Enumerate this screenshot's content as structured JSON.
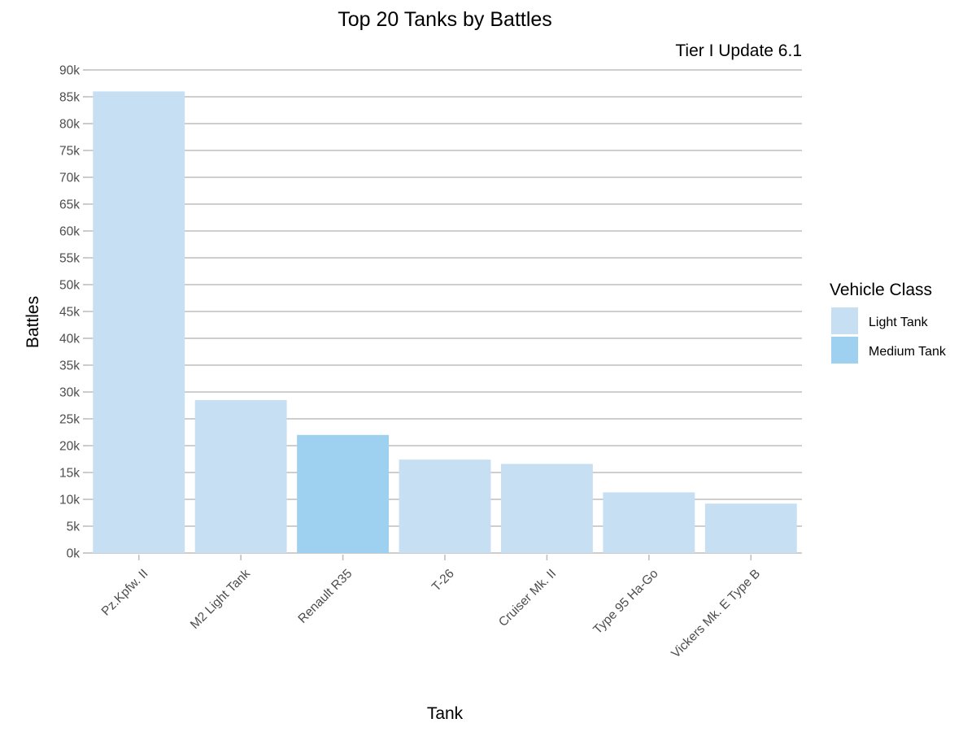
{
  "chart_data": {
    "type": "bar",
    "title": "Top 20 Tanks by Battles",
    "subtitle": "Tier I Update 6.1",
    "xlabel": "Tank",
    "ylabel": "Battles",
    "categories": [
      "Pz.Kpfw. II",
      "M2 Light Tank",
      "Renault R35",
      "T-26",
      "Cruiser Mk. II",
      "Type 95 Ha-Go",
      "Vickers Mk. E Type B"
    ],
    "values": [
      86000,
      28500,
      22000,
      17400,
      16600,
      11300,
      9200
    ],
    "classes": [
      "Light Tank",
      "Light Tank",
      "Medium Tank",
      "Light Tank",
      "Light Tank",
      "Light Tank",
      "Light Tank"
    ],
    "ylim": [
      0,
      90000
    ],
    "ytick_step": 5000,
    "yticks": [
      "0k",
      "5k",
      "10k",
      "15k",
      "20k",
      "25k",
      "30k",
      "35k",
      "40k",
      "45k",
      "50k",
      "55k",
      "60k",
      "65k",
      "70k",
      "75k",
      "80k",
      "85k",
      "90k"
    ],
    "grid": true,
    "legend": {
      "title": "Vehicle Class",
      "position": "right",
      "entries": [
        {
          "label": "Light Tank",
          "color": "#c6dff3"
        },
        {
          "label": "Medium Tank",
          "color": "#9ed0f0"
        }
      ]
    },
    "colors": {
      "Light Tank": "#c6dff3",
      "Medium Tank": "#9ed0f0",
      "grid": "#bebebe",
      "tick_text": "#4d4d4d"
    }
  }
}
